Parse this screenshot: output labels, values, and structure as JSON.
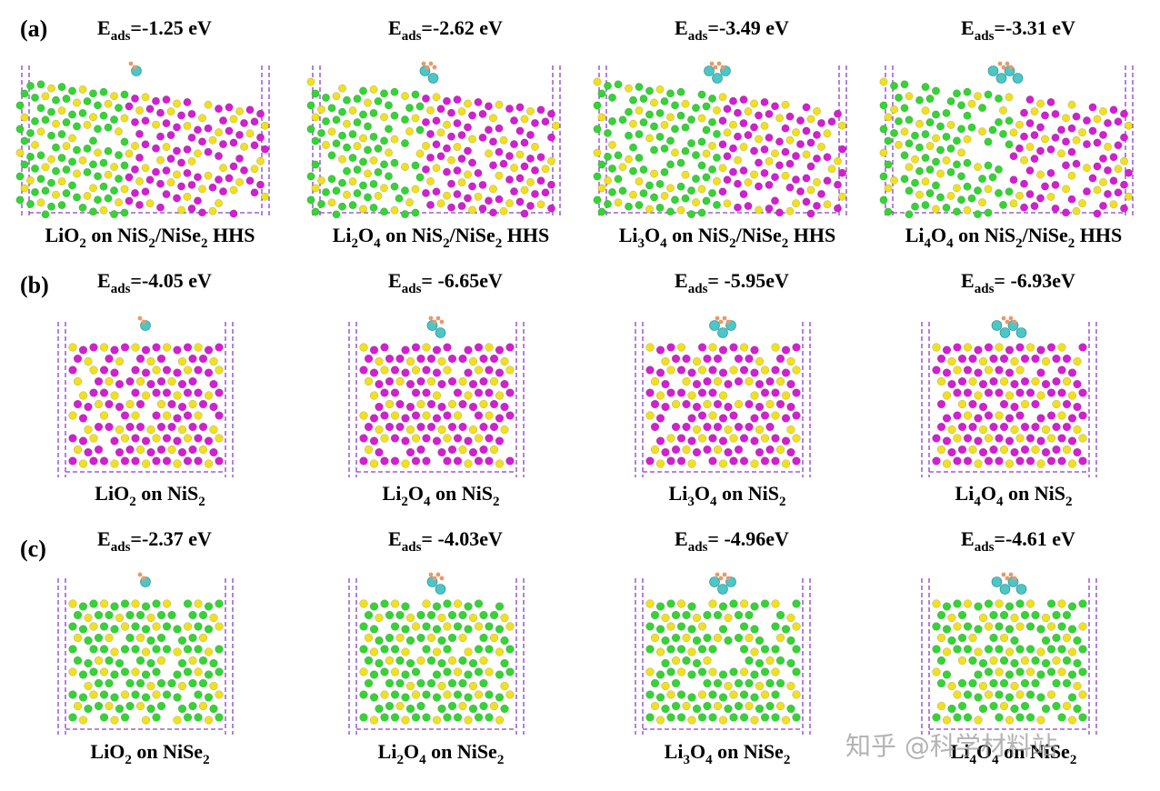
{
  "panels": [
    {
      "label": "(a)",
      "items": [
        {
          "energy": {
            "symbol": "E",
            "subscript": "ads",
            "value": "=-1.25 eV"
          },
          "caption": [
            "LiO",
            "2",
            " on NiS",
            "2",
            "/NiSe",
            "2",
            " HHS"
          ]
        },
        {
          "energy": {
            "symbol": "E",
            "subscript": "ads",
            "value": "=-2.62 eV"
          },
          "caption": [
            "Li",
            "2",
            "O",
            "4",
            " on NiS",
            "2",
            "/NiSe",
            "2",
            " HHS"
          ]
        },
        {
          "energy": {
            "symbol": "E",
            "subscript": "ads",
            "value": "=-3.49 eV"
          },
          "caption": [
            "Li",
            "3",
            "O",
            "4",
            " on NiS",
            "2",
            "/NiSe",
            "2",
            " HHS"
          ]
        },
        {
          "energy": {
            "symbol": "E",
            "subscript": "ads",
            "value": "=-3.31 eV"
          },
          "caption": [
            "Li",
            "4",
            "O",
            "4",
            " on NiS",
            "2",
            "/NiSe",
            "2",
            " HHS"
          ]
        }
      ]
    },
    {
      "label": "(b)",
      "items": [
        {
          "energy": {
            "symbol": "E",
            "subscript": "ads",
            "value": "=-4.05 eV"
          },
          "caption": [
            "LiO",
            "2",
            " on NiS",
            "2"
          ]
        },
        {
          "energy": {
            "symbol": "E",
            "subscript": "ads",
            "value": "= -6.65eV"
          },
          "caption": [
            "Li",
            "2",
            "O",
            "4",
            " on NiS",
            "2"
          ]
        },
        {
          "energy": {
            "symbol": "E",
            "subscript": "ads",
            "value": "= -5.95eV"
          },
          "caption": [
            "Li",
            "3",
            "O",
            "4",
            " on NiS",
            "2"
          ]
        },
        {
          "energy": {
            "symbol": "E",
            "subscript": "ads",
            "value": "= -6.93eV"
          },
          "caption": [
            "Li",
            "4",
            "O",
            "4",
            " on NiS",
            "2"
          ]
        }
      ]
    },
    {
      "label": "(c)",
      "items": [
        {
          "energy": {
            "symbol": "E",
            "subscript": "ads",
            "value": "=-2.37 eV"
          },
          "caption": [
            "LiO",
            "2",
            " on NiSe",
            "2"
          ]
        },
        {
          "energy": {
            "symbol": "E",
            "subscript": "ads",
            "value": "= -4.03eV"
          },
          "caption": [
            "Li",
            "2",
            "O",
            "4",
            " on NiSe",
            "2"
          ]
        },
        {
          "energy": {
            "symbol": "E",
            "subscript": "ads",
            "value": "= -4.96eV"
          },
          "caption": [
            "Li",
            "3",
            "O",
            "4",
            " on NiSe",
            "2"
          ]
        },
        {
          "energy": {
            "symbol": "E",
            "subscript": "ads",
            "value": "=-4.61 eV"
          },
          "caption": [
            "Li",
            "4",
            "O",
            "4",
            " on NiSe",
            "2"
          ]
        }
      ]
    }
  ],
  "watermark": "知乎 @科学材料站"
}
